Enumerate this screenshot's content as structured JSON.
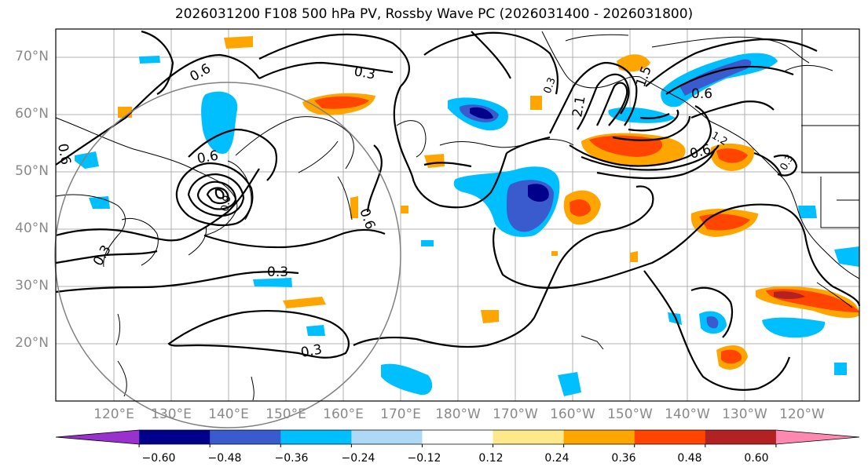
{
  "title": "2026031200 F108 500 hPa PV, Rossby Wave PC (2026031400 - 2026031800)",
  "lat_labels": [
    "70°N",
    "60°N",
    "50°N",
    "40°N",
    "30°N",
    "20°N"
  ],
  "lon_labels": [
    "120°E",
    "130°E",
    "140°E",
    "150°E",
    "160°E",
    "170°E",
    "180°W",
    "170°W",
    "160°W",
    "150°W",
    "140°W",
    "130°W",
    "120°W"
  ],
  "contour_labels": [
    "0.6",
    "0.3",
    "0.6",
    "0.6",
    "0.3",
    "0.3",
    "0.3",
    "0.6",
    "0.6",
    "0.6",
    "0.9",
    "1.2",
    "1.5",
    "2.1",
    "0.3",
    "0.3"
  ],
  "colorbar": {
    "tick_labels": [
      "−0.60",
      "−0.48",
      "−0.36",
      "−0.24",
      "−0.12",
      "0.12",
      "0.24",
      "0.36",
      "0.48",
      "0.60"
    ],
    "colors": [
      "#9932cc",
      "#00008b",
      "#3a5bcd",
      "#00bfff",
      "#add8f6",
      "#ffffff",
      "#fde88a",
      "#ffa500",
      "#ff4500",
      "#b22222",
      "#ff88b0"
    ]
  },
  "field_colors": {
    "neg_strong": "#00008b",
    "neg_mid": "#3a5bcd",
    "neg": "#00bfff",
    "neg_weak": "#add8f6",
    "pos_weak": "#fde88a",
    "pos": "#ffa500",
    "pos_mid": "#ff4500",
    "pos_strong": "#b22222"
  }
}
